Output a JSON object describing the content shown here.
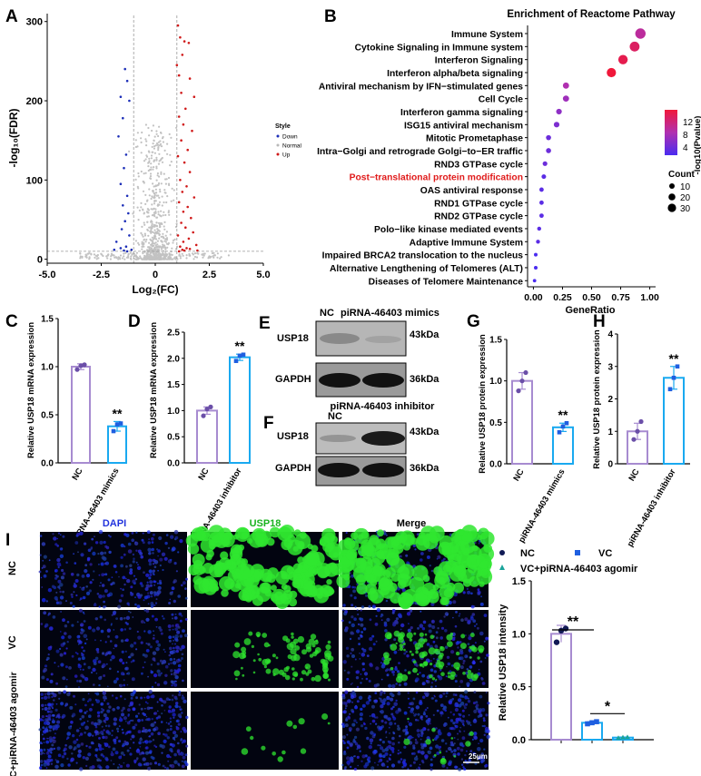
{
  "panels": {
    "A": "A",
    "B": "B",
    "C": "C",
    "D": "D",
    "E": "E",
    "F": "F",
    "G": "G",
    "H": "H",
    "I": "I"
  },
  "volcano": {
    "ylabel": "-log₁₀(FDR)",
    "xlabel": "Log₂(FC)",
    "xticks": [
      "-5.0",
      "-2.5",
      "0",
      "2.5",
      "5.0"
    ],
    "yticks": [
      "0",
      "100",
      "200",
      "300"
    ],
    "legend_title": "Style",
    "legend": [
      {
        "label": "Down",
        "color": "#1d2fb8"
      },
      {
        "label": "Normal",
        "color": "#b8b8b8"
      },
      {
        "label": "Up",
        "color": "#d01a1a"
      }
    ]
  },
  "reactome": {
    "title": "Enrichment of Reactome Pathway",
    "xlabel": "GeneRatio",
    "xticks": [
      "0.00",
      "0.25",
      "0.50",
      "0.75",
      "1.00"
    ],
    "colorbar_label": "-log10(Pvalue)",
    "colorbar_ticks": [
      "12",
      "8",
      "4"
    ],
    "count_label": "Count",
    "count_ticks": [
      "10",
      "20",
      "30"
    ],
    "highlight_color": "#e01b1b"
  },
  "qpcr_c": {
    "ylabel": "Relative USP18 mRNA expression",
    "yticks": [
      "0.0",
      "0.5",
      "1.0",
      "1.5"
    ],
    "categories": [
      "NC",
      "piRNA-46403 mimics"
    ],
    "sig": "**"
  },
  "qpcr_d": {
    "ylabel": "Relative USP18 mRNA expression",
    "yticks": [
      "0.0",
      "0.5",
      "1.0",
      "1.5",
      "2.0",
      "2.5"
    ],
    "categories": [
      "NC",
      "piRNA-46403 inhibitor"
    ],
    "sig": "**"
  },
  "blot_e": {
    "header_nc": "NC",
    "header_trt": "piRNA-46403 mimics",
    "rows": [
      {
        "name": "USP18",
        "kda": "43kDa"
      },
      {
        "name": "GAPDH",
        "kda": "36kDa"
      }
    ]
  },
  "blot_f": {
    "header_nc": "NC",
    "header_trt": "piRNA-46403 inhibitor",
    "rows": [
      {
        "name": "USP18",
        "kda": "43kDa"
      },
      {
        "name": "GAPDH",
        "kda": "36kDa"
      }
    ]
  },
  "protein_g": {
    "ylabel": "Relative USP18 protein expression",
    "yticks": [
      "0.0",
      "0.5",
      "1.0",
      "1.5"
    ],
    "categories": [
      "NC",
      "piRNA-46403 mimics"
    ],
    "sig": "**"
  },
  "protein_h": {
    "ylabel": "Relative USP18 protein expression",
    "yticks": [
      "0",
      "1",
      "2",
      "3",
      "4"
    ],
    "categories": [
      "NC",
      "piRNA-46403 inhibitor"
    ],
    "sig": "**"
  },
  "if_panel": {
    "columns": [
      {
        "label": "DAPI",
        "color": "#2233dd"
      },
      {
        "label": "USP18",
        "color": "#19b21e"
      },
      {
        "label": "Merge",
        "color": "#000000"
      }
    ],
    "rows": [
      "NC",
      "VC",
      "VC+piRNA-46403 agomir"
    ],
    "scalebar": "25μm"
  },
  "intensity": {
    "ylabel": "Relative USP18 intensity",
    "yticks": [
      "0.0",
      "0.5",
      "1.0",
      "1.5"
    ],
    "legend": [
      {
        "label": "NC",
        "color": "#111a55"
      },
      {
        "label": "VC",
        "color": "#1f5fe0"
      },
      {
        "label": "VC+piRNA-46403 agomir",
        "color": "#1aa39a"
      }
    ],
    "sig1": "**",
    "sig2": "*"
  },
  "chart_data": [
    {
      "id": "A",
      "type": "scatter",
      "xlabel": "Log₂(FC)",
      "ylabel": "-log₁₀(FDR)",
      "xlim": [
        -5,
        5
      ],
      "ylim": [
        -5,
        310
      ],
      "series": [
        {
          "name": "Down",
          "color": "#1d2fb8",
          "points": [
            [
              -1.4,
              240
            ],
            [
              -1.3,
              225
            ],
            [
              -1.6,
              205
            ],
            [
              -1.2,
              200
            ],
            [
              -1.5,
              178
            ],
            [
              -1.7,
              155
            ],
            [
              -1.35,
              132
            ],
            [
              -1.45,
              115
            ],
            [
              -1.6,
              95
            ],
            [
              -1.3,
              80
            ],
            [
              -1.5,
              68
            ],
            [
              -1.25,
              58
            ],
            [
              -1.4,
              48
            ],
            [
              -1.55,
              38
            ],
            [
              -1.2,
              30
            ],
            [
              -1.8,
              22
            ],
            [
              -1.35,
              16
            ],
            [
              -1.6,
              14
            ],
            [
              -1.1,
              12
            ],
            [
              -1.9,
              12
            ],
            [
              -1.45,
              11
            ],
            [
              -1.3,
              10
            ]
          ]
        },
        {
          "name": "Up",
          "color": "#d01a1a",
          "points": [
            [
              1.05,
              295
            ],
            [
              1.15,
              280
            ],
            [
              1.35,
              275
            ],
            [
              1.55,
              273
            ],
            [
              1.25,
              258
            ],
            [
              1.0,
              245
            ],
            [
              1.1,
              232
            ],
            [
              1.6,
              228
            ],
            [
              1.2,
              210
            ],
            [
              1.8,
              205
            ],
            [
              1.4,
              190
            ],
            [
              1.1,
              180
            ],
            [
              1.3,
              170
            ],
            [
              1.7,
              162
            ],
            [
              1.2,
              150
            ],
            [
              1.5,
              138
            ],
            [
              1.05,
              130
            ],
            [
              1.35,
              122
            ],
            [
              1.6,
              110
            ],
            [
              1.15,
              100
            ],
            [
              1.45,
              92
            ],
            [
              1.25,
              85
            ],
            [
              1.8,
              78
            ],
            [
              1.1,
              72
            ],
            [
              1.5,
              66
            ],
            [
              1.3,
              60
            ],
            [
              1.65,
              52
            ],
            [
              1.2,
              46
            ],
            [
              1.4,
              40
            ],
            [
              1.75,
              34
            ],
            [
              1.05,
              30
            ],
            [
              1.55,
              26
            ],
            [
              1.3,
              22
            ],
            [
              1.9,
              18
            ],
            [
              1.15,
              16
            ],
            [
              1.45,
              14
            ],
            [
              1.6,
              13
            ],
            [
              1.25,
              12
            ],
            [
              1.35,
              11
            ],
            [
              1.95,
              11
            ],
            [
              1.1,
              10
            ]
          ]
        }
      ],
      "threshold_x": [
        -1,
        1
      ],
      "threshold_y": 10
    },
    {
      "id": "B",
      "type": "scatter",
      "subtype": "dotplot",
      "title": "Enrichment of Reactome Pathway",
      "xlabel": "GeneRatio",
      "xlim": [
        -0.05,
        1.05
      ],
      "categories": [
        "Immune System",
        "Cytokine Signaling in Immune system",
        "Interferon Signaling",
        "Interferon alpha/beta signaling",
        "Antiviral mechanism by IFN−stimulated genes",
        "Cell Cycle",
        "Interferon gamma signaling",
        "ISG15 antiviral mechanism",
        "Mitotic Prometaphase",
        "Intra−Golgi and retrograde Golgi−to−ER traffic",
        "RND3 GTPase cycle",
        "Post−translational protein modification",
        "OAS antiviral response",
        "RND1 GTPase cycle",
        "RND2 GTPase cycle",
        "Polo−like kinase mediated events",
        "Adaptive Immune System",
        "Impaired BRCA2 translocation to the nucleus",
        "Alternative Lengthening of Telomeres (ALT)",
        "Diseases of Telomere Maintenance"
      ],
      "gene_ratio": [
        0.92,
        0.87,
        0.77,
        0.67,
        0.28,
        0.28,
        0.22,
        0.2,
        0.13,
        0.13,
        0.1,
        0.09,
        0.07,
        0.07,
        0.07,
        0.05,
        0.04,
        0.02,
        0.02,
        0.01
      ],
      "neg_log10_p": [
        10,
        13,
        14,
        15,
        9,
        8,
        7,
        6,
        5,
        5,
        5,
        4,
        4,
        4,
        4,
        4,
        4,
        3,
        3,
        3
      ],
      "count": [
        32,
        30,
        28,
        27,
        14,
        14,
        12,
        12,
        9,
        9,
        8,
        7,
        6,
        6,
        6,
        5,
        5,
        3,
        3,
        2
      ],
      "highlight": "Post−translational protein modification",
      "colorbar_range": [
        3,
        15
      ]
    },
    {
      "id": "C",
      "type": "bar",
      "categories": [
        "NC",
        "piRNA-46403 mimics"
      ],
      "values": [
        1.0,
        0.38
      ],
      "errors": [
        0.03,
        0.05
      ],
      "points": [
        [
          0.97,
          1.01,
          1.02
        ],
        [
          0.33,
          0.4,
          0.41
        ]
      ],
      "ylim": [
        0,
        1.5
      ],
      "ylabel": "Relative USP18 mRNA expression",
      "colors": [
        "#a78bd0",
        "#19a9f0"
      ]
    },
    {
      "id": "D",
      "type": "bar",
      "categories": [
        "NC",
        "piRNA-46403 inhibitor"
      ],
      "values": [
        1.0,
        2.02
      ],
      "errors": [
        0.07,
        0.06
      ],
      "points": [
        [
          0.9,
          1.03,
          1.07
        ],
        [
          1.95,
          2.05,
          2.07
        ]
      ],
      "ylim": [
        0,
        2.5
      ],
      "ylabel": "Relative USP18 mRNA expression",
      "colors": [
        "#a78bd0",
        "#19a9f0"
      ]
    },
    {
      "id": "G",
      "type": "bar",
      "categories": [
        "NC",
        "piRNA-46403 mimics"
      ],
      "values": [
        1.0,
        0.44
      ],
      "errors": [
        0.1,
        0.05
      ],
      "points": [
        [
          0.88,
          1.0,
          1.1
        ],
        [
          0.38,
          0.45,
          0.49
        ]
      ],
      "ylim": [
        0,
        1.5
      ],
      "ylabel": "Relative USP18 protein expression",
      "colors": [
        "#a78bd0",
        "#19a9f0"
      ]
    },
    {
      "id": "H",
      "type": "bar",
      "categories": [
        "NC",
        "piRNA-46403 inhibitor"
      ],
      "values": [
        1.0,
        2.65
      ],
      "errors": [
        0.25,
        0.35
      ],
      "points": [
        [
          0.75,
          1.0,
          1.3
        ],
        [
          2.3,
          2.65,
          3.0
        ]
      ],
      "ylim": [
        0,
        4
      ],
      "ylabel": "Relative USP18 protein expression",
      "colors": [
        "#a78bd0",
        "#19a9f0"
      ]
    },
    {
      "id": "I",
      "type": "bar",
      "categories": [
        "NC",
        "VC",
        "VC+piRNA-46403 agomir"
      ],
      "values": [
        1.0,
        0.16,
        0.02
      ],
      "errors": [
        0.08,
        0.01,
        0.005
      ],
      "points": [
        [
          0.92,
          1.03,
          1.05
        ],
        [
          0.15,
          0.16,
          0.17
        ],
        [
          0.015,
          0.02,
          0.022
        ]
      ],
      "ylim": [
        0,
        1.5
      ],
      "ylabel": "Relative USP18 intensity",
      "colors": [
        "#a78bd0",
        "#19a9f0",
        "#19a9f0"
      ]
    }
  ]
}
